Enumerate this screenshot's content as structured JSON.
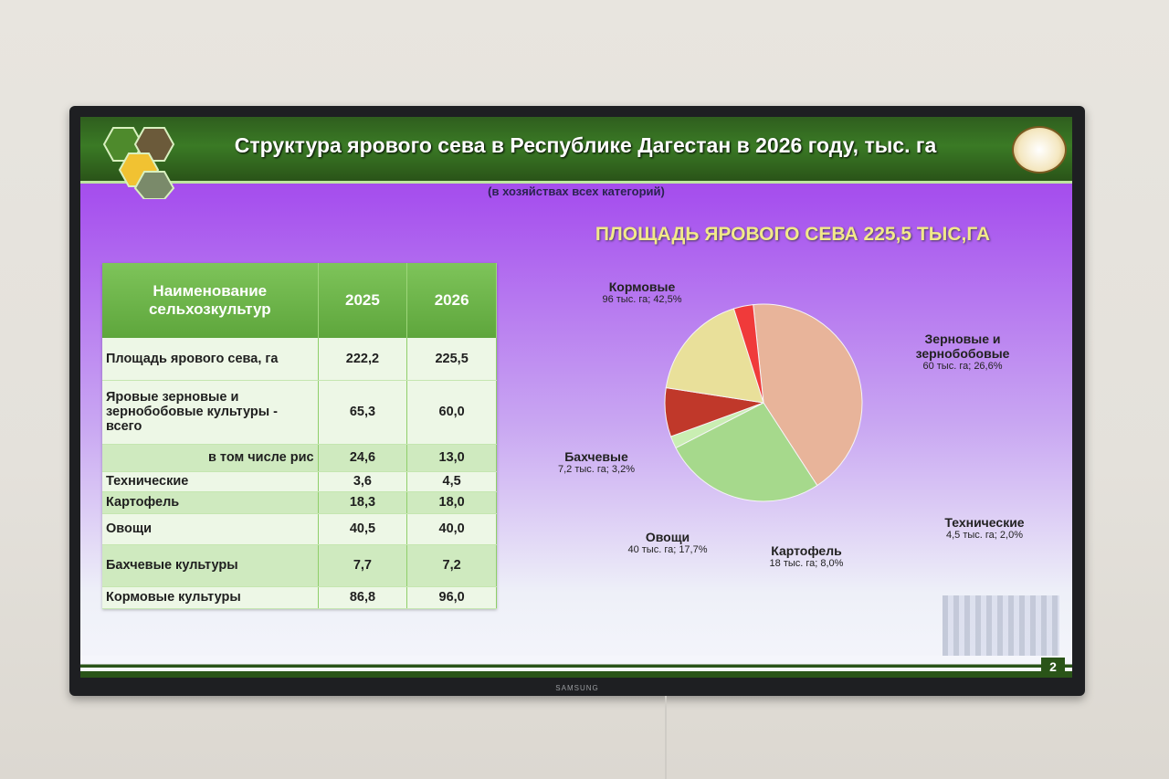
{
  "screen": {
    "brand": "SAMSUNG",
    "title": "Структура ярового сева в Республике Дагестан в 2026 году, тыс. га",
    "subtitle": "(в хозяйствах всех категорий)",
    "page_number": "2"
  },
  "table": {
    "headers": [
      "Наименование сельхозкультур",
      "2025",
      "2026"
    ],
    "rows": [
      {
        "name": "Площадь ярового сева, га",
        "y2025": "222,2",
        "y2026": "225,5"
      },
      {
        "name": "Яровые зерновые и зернобобовые культуры - всего",
        "y2025": "65,3",
        "y2026": "60,0"
      },
      {
        "name": "в том числе рис",
        "y2025": "24,6",
        "y2026": "13,0"
      },
      {
        "name": "Технические",
        "y2025": "3,6",
        "y2026": "4,5"
      },
      {
        "name": "Картофель",
        "y2025": "18,3",
        "y2026": "18,0"
      },
      {
        "name": "Овощи",
        "y2025": "40,5",
        "y2026": "40,0"
      },
      {
        "name": "Бахчевые культуры",
        "y2025": "7,7",
        "y2026": "7,2"
      },
      {
        "name": "Кормовые культуры",
        "y2025": "86,8",
        "y2026": "96,0"
      }
    ]
  },
  "chart_data": {
    "type": "pie",
    "title": "ПЛОЩАДЬ ЯРОВОГО СЕВА 225,5 ТЫС,ГА",
    "slices": [
      {
        "name": "Кормовые",
        "label": "96 тыс. га; 42,5%",
        "value": 42.5,
        "color": "#e8b49a"
      },
      {
        "name": "Зерновые и зернобобовые",
        "label": "60 тыс. га; 26,6%",
        "value": 26.6,
        "color": "#a6d98c"
      },
      {
        "name": "Технические",
        "label": "4,5 тыс. га; 2,0%",
        "value": 2.0,
        "color": "#c9eeb2"
      },
      {
        "name": "Картофель",
        "label": "18 тыс. га; 8,0%",
        "value": 8.0,
        "color": "#c0382a"
      },
      {
        "name": "Овощи",
        "label": "40 тыс. га; 17,7%",
        "value": 17.7,
        "color": "#e9e09a"
      },
      {
        "name": "Бахчевые",
        "label": "7,2 тыс. га; 3,2%",
        "value": 3.2,
        "color": "#f03a3a"
      }
    ]
  }
}
